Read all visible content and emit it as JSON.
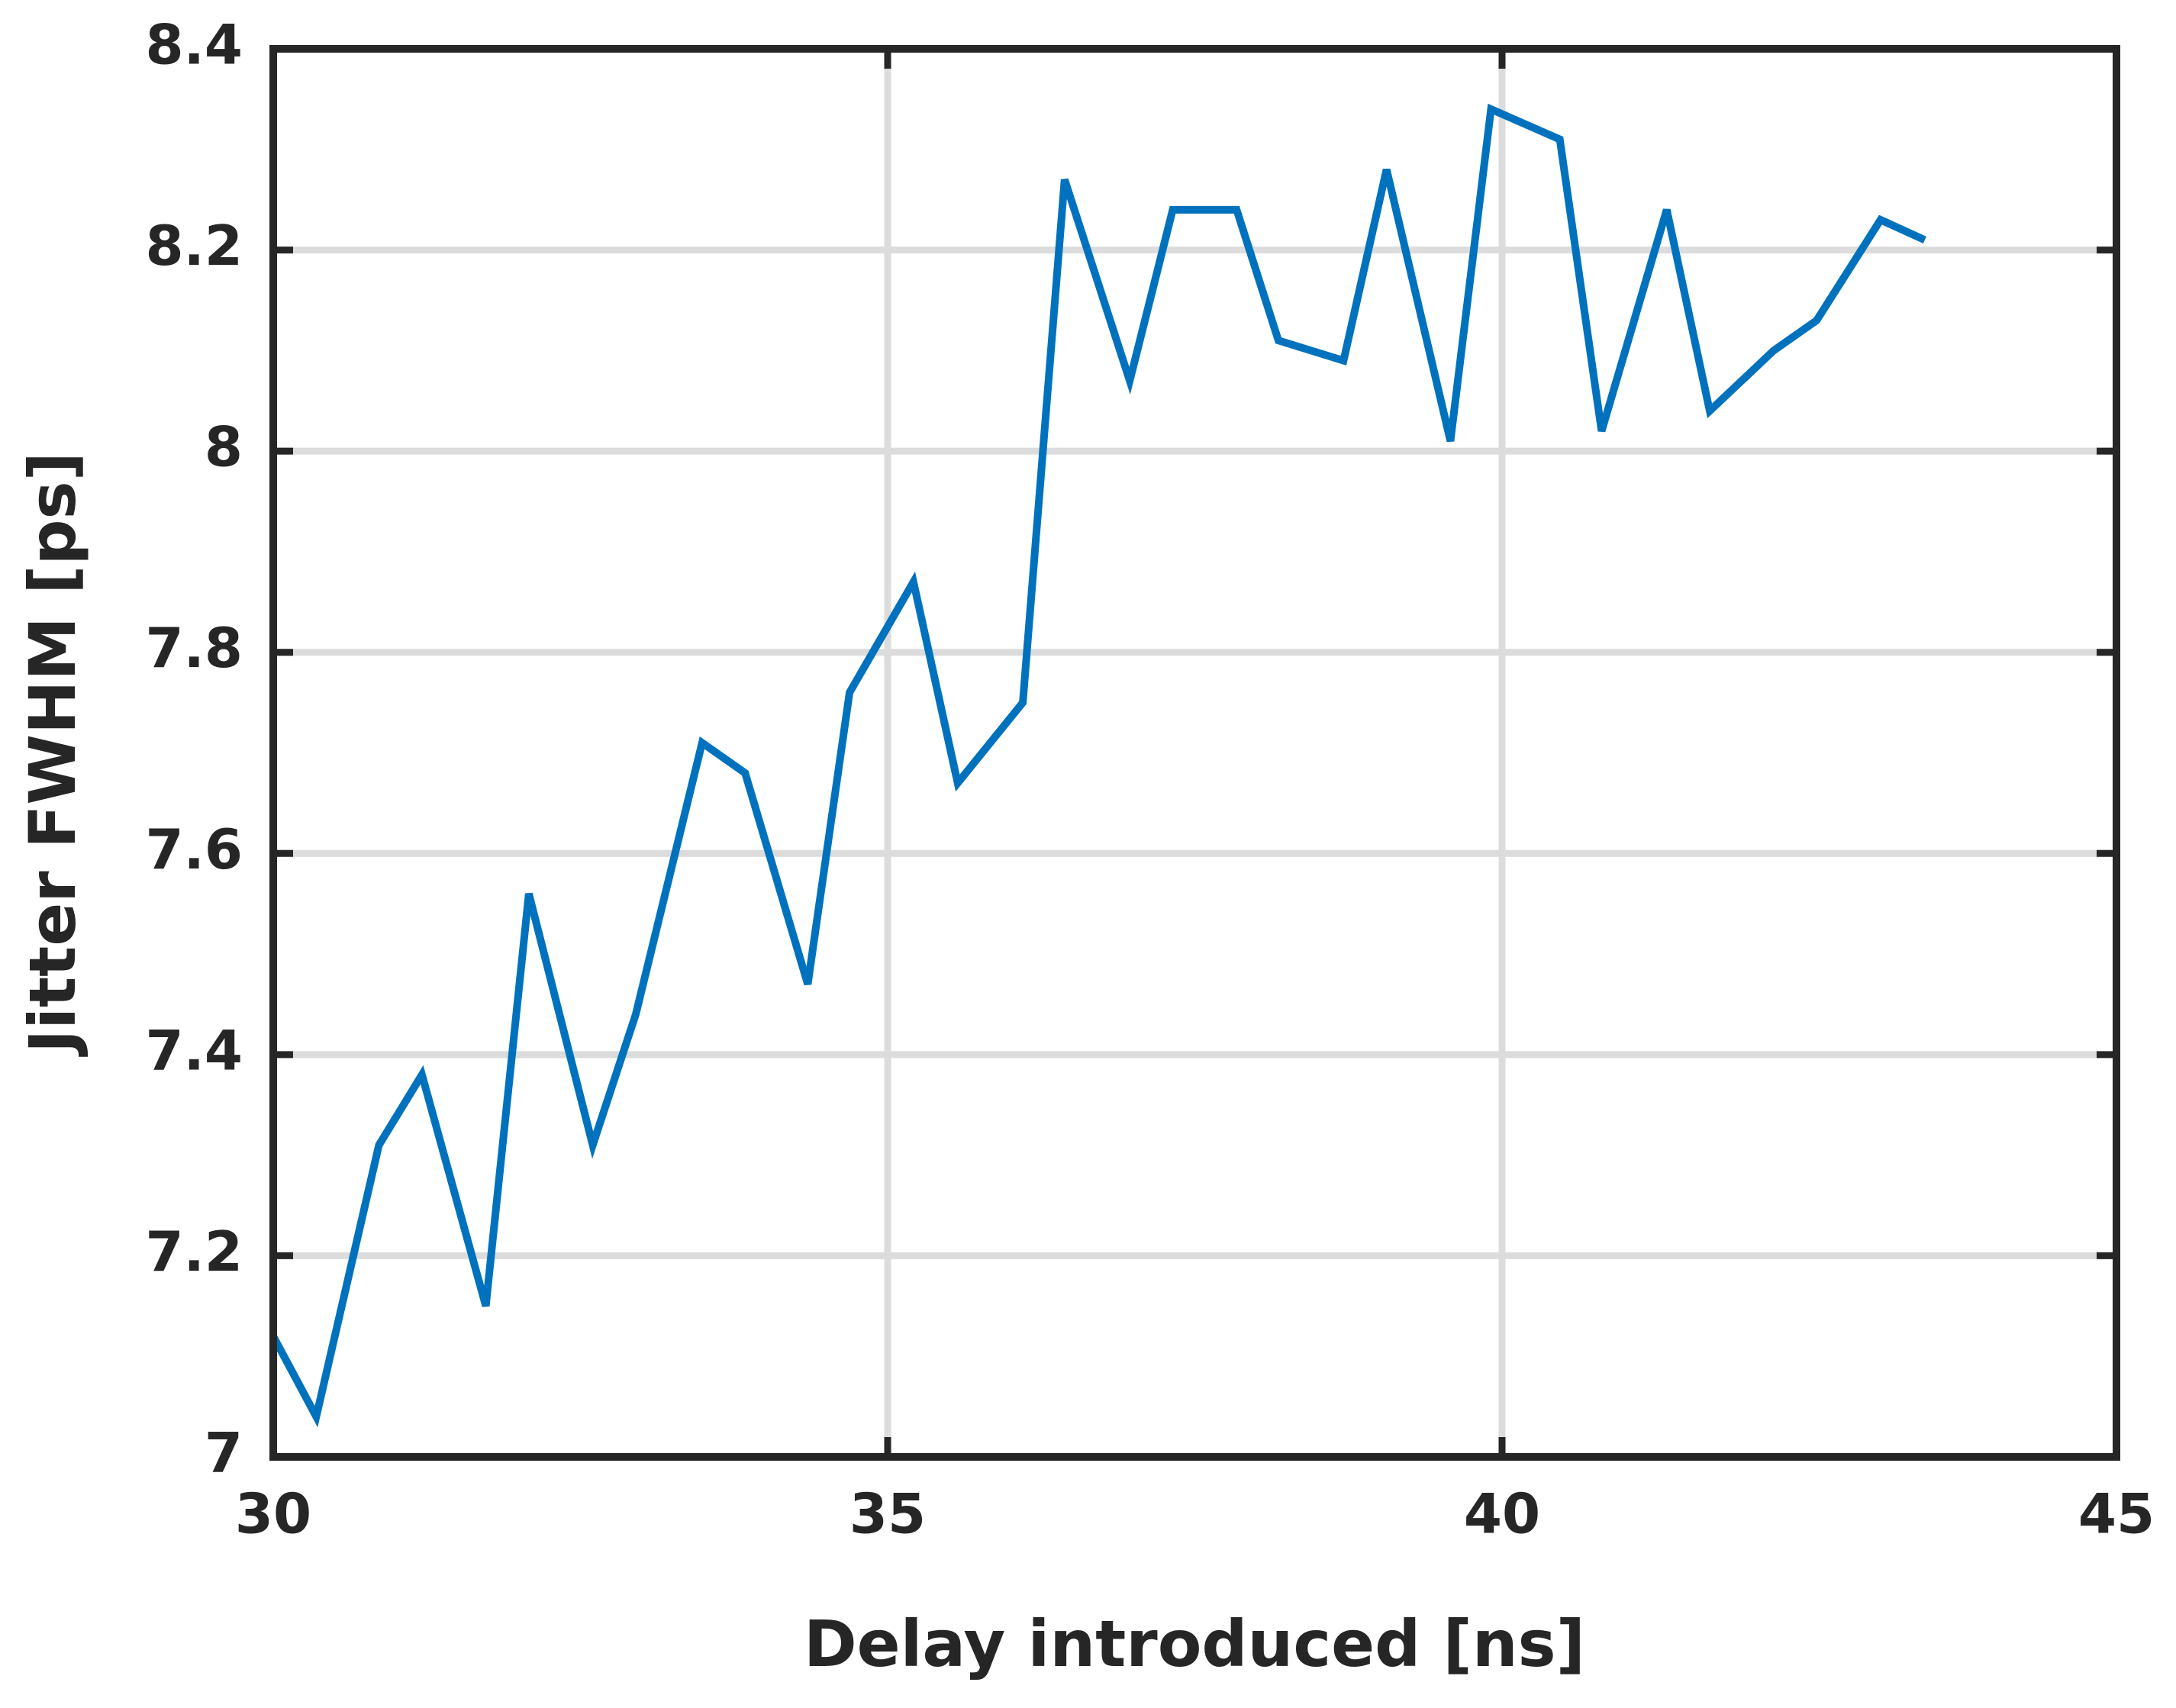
{
  "chart_data": {
    "type": "line",
    "xlabel": "Delay introduced [ns]",
    "ylabel": "Jitter FWHM [ps]",
    "x": [
      30.0,
      30.35,
      30.86,
      31.21,
      31.73,
      32.08,
      32.6,
      32.95,
      33.49,
      33.84,
      34.35,
      34.69,
      35.21,
      35.57,
      36.1,
      36.44,
      36.97,
      37.32,
      37.84,
      38.18,
      38.71,
      39.06,
      39.58,
      39.91,
      40.47,
      40.81,
      41.34,
      41.69,
      42.21,
      42.56,
      43.08,
      43.44
    ],
    "series": [
      {
        "name": "Jitter",
        "color": "#0072bd",
        "values": [
          7.12,
          7.04,
          7.31,
          7.38,
          7.15,
          7.56,
          7.31,
          7.44,
          7.71,
          7.68,
          7.47,
          7.76,
          7.87,
          7.67,
          7.75,
          8.27,
          8.07,
          8.24,
          8.24,
          8.11,
          8.09,
          8.28,
          8.01,
          8.34,
          8.31,
          8.02,
          8.24,
          8.04,
          8.1,
          8.13,
          8.23,
          8.21
        ]
      }
    ],
    "xlim": [
      30,
      45
    ],
    "xticks": [
      30,
      35,
      40,
      45
    ],
    "ylim": [
      7,
      8.4
    ],
    "yticks": [
      7,
      7.2,
      7.4,
      7.6,
      7.8,
      8,
      8.2,
      8.4
    ],
    "grid": true
  }
}
